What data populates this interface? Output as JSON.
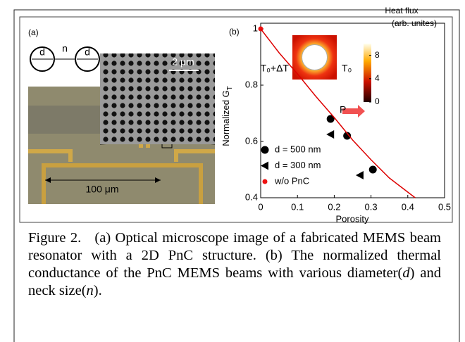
{
  "panel_a": {
    "label": "(a)",
    "diagram": {
      "d1": "d",
      "n": "n",
      "d2": "d"
    },
    "sem_scale": "2 μm",
    "optical_scale": "100 μm"
  },
  "chart_data": {
    "type": "scatter",
    "panel_label": "(b)",
    "x_label": "Porosity",
    "y_label": "Normalized G",
    "y_label_sub": "T",
    "xlim": [
      0,
      0.5
    ],
    "xticks": [
      0,
      0.1,
      0.2,
      0.3,
      0.4,
      0.5
    ],
    "ylim": [
      0.4,
      1.02
    ],
    "yticks": [
      0.4,
      0.6,
      0.8,
      1
    ],
    "series": [
      {
        "name": "d = 500 nm",
        "color": "#000000",
        "marker": "circle",
        "x": [
          0.19,
          0.235,
          0.305
        ],
        "values": [
          0.68,
          0.62,
          0.5
        ]
      },
      {
        "name": "d = 300 nm",
        "color": "#000000",
        "marker": "triangle-left",
        "x": [
          0.19,
          0.27
        ],
        "values": [
          0.625,
          0.48
        ]
      },
      {
        "name": "w/o PnC",
        "color": "#ee1111",
        "marker": "dot",
        "x": [
          0
        ],
        "values": [
          1
        ]
      },
      {
        "color": "#dd0000",
        "marker": "line",
        "x": [
          0,
          0.05,
          0.1,
          0.15,
          0.2,
          0.25,
          0.3,
          0.35,
          0.42
        ],
        "values": [
          1,
          0.915,
          0.84,
          0.76,
          0.685,
          0.605,
          0.535,
          0.47,
          0.4
        ]
      }
    ],
    "annotation": "P",
    "inset": {
      "left_label": "T₀+ΔT",
      "right_label": "T₀",
      "colorbar_title": "Heat flux",
      "colorbar_subtitle": "(arb. unites)",
      "clim": [
        0,
        10
      ],
      "colorbar_ticks": [
        0,
        4,
        8
      ]
    }
  },
  "caption": [
    "Figure 2.",
    "(a) Optical microscope image of a fabricated MEMS beam resonator with a 2D PnC structure. (b) The normalized thermal conductance of the PnC MEMS beams with various diameter(",
    "d",
    ") and neck size(",
    "n",
    ")."
  ]
}
